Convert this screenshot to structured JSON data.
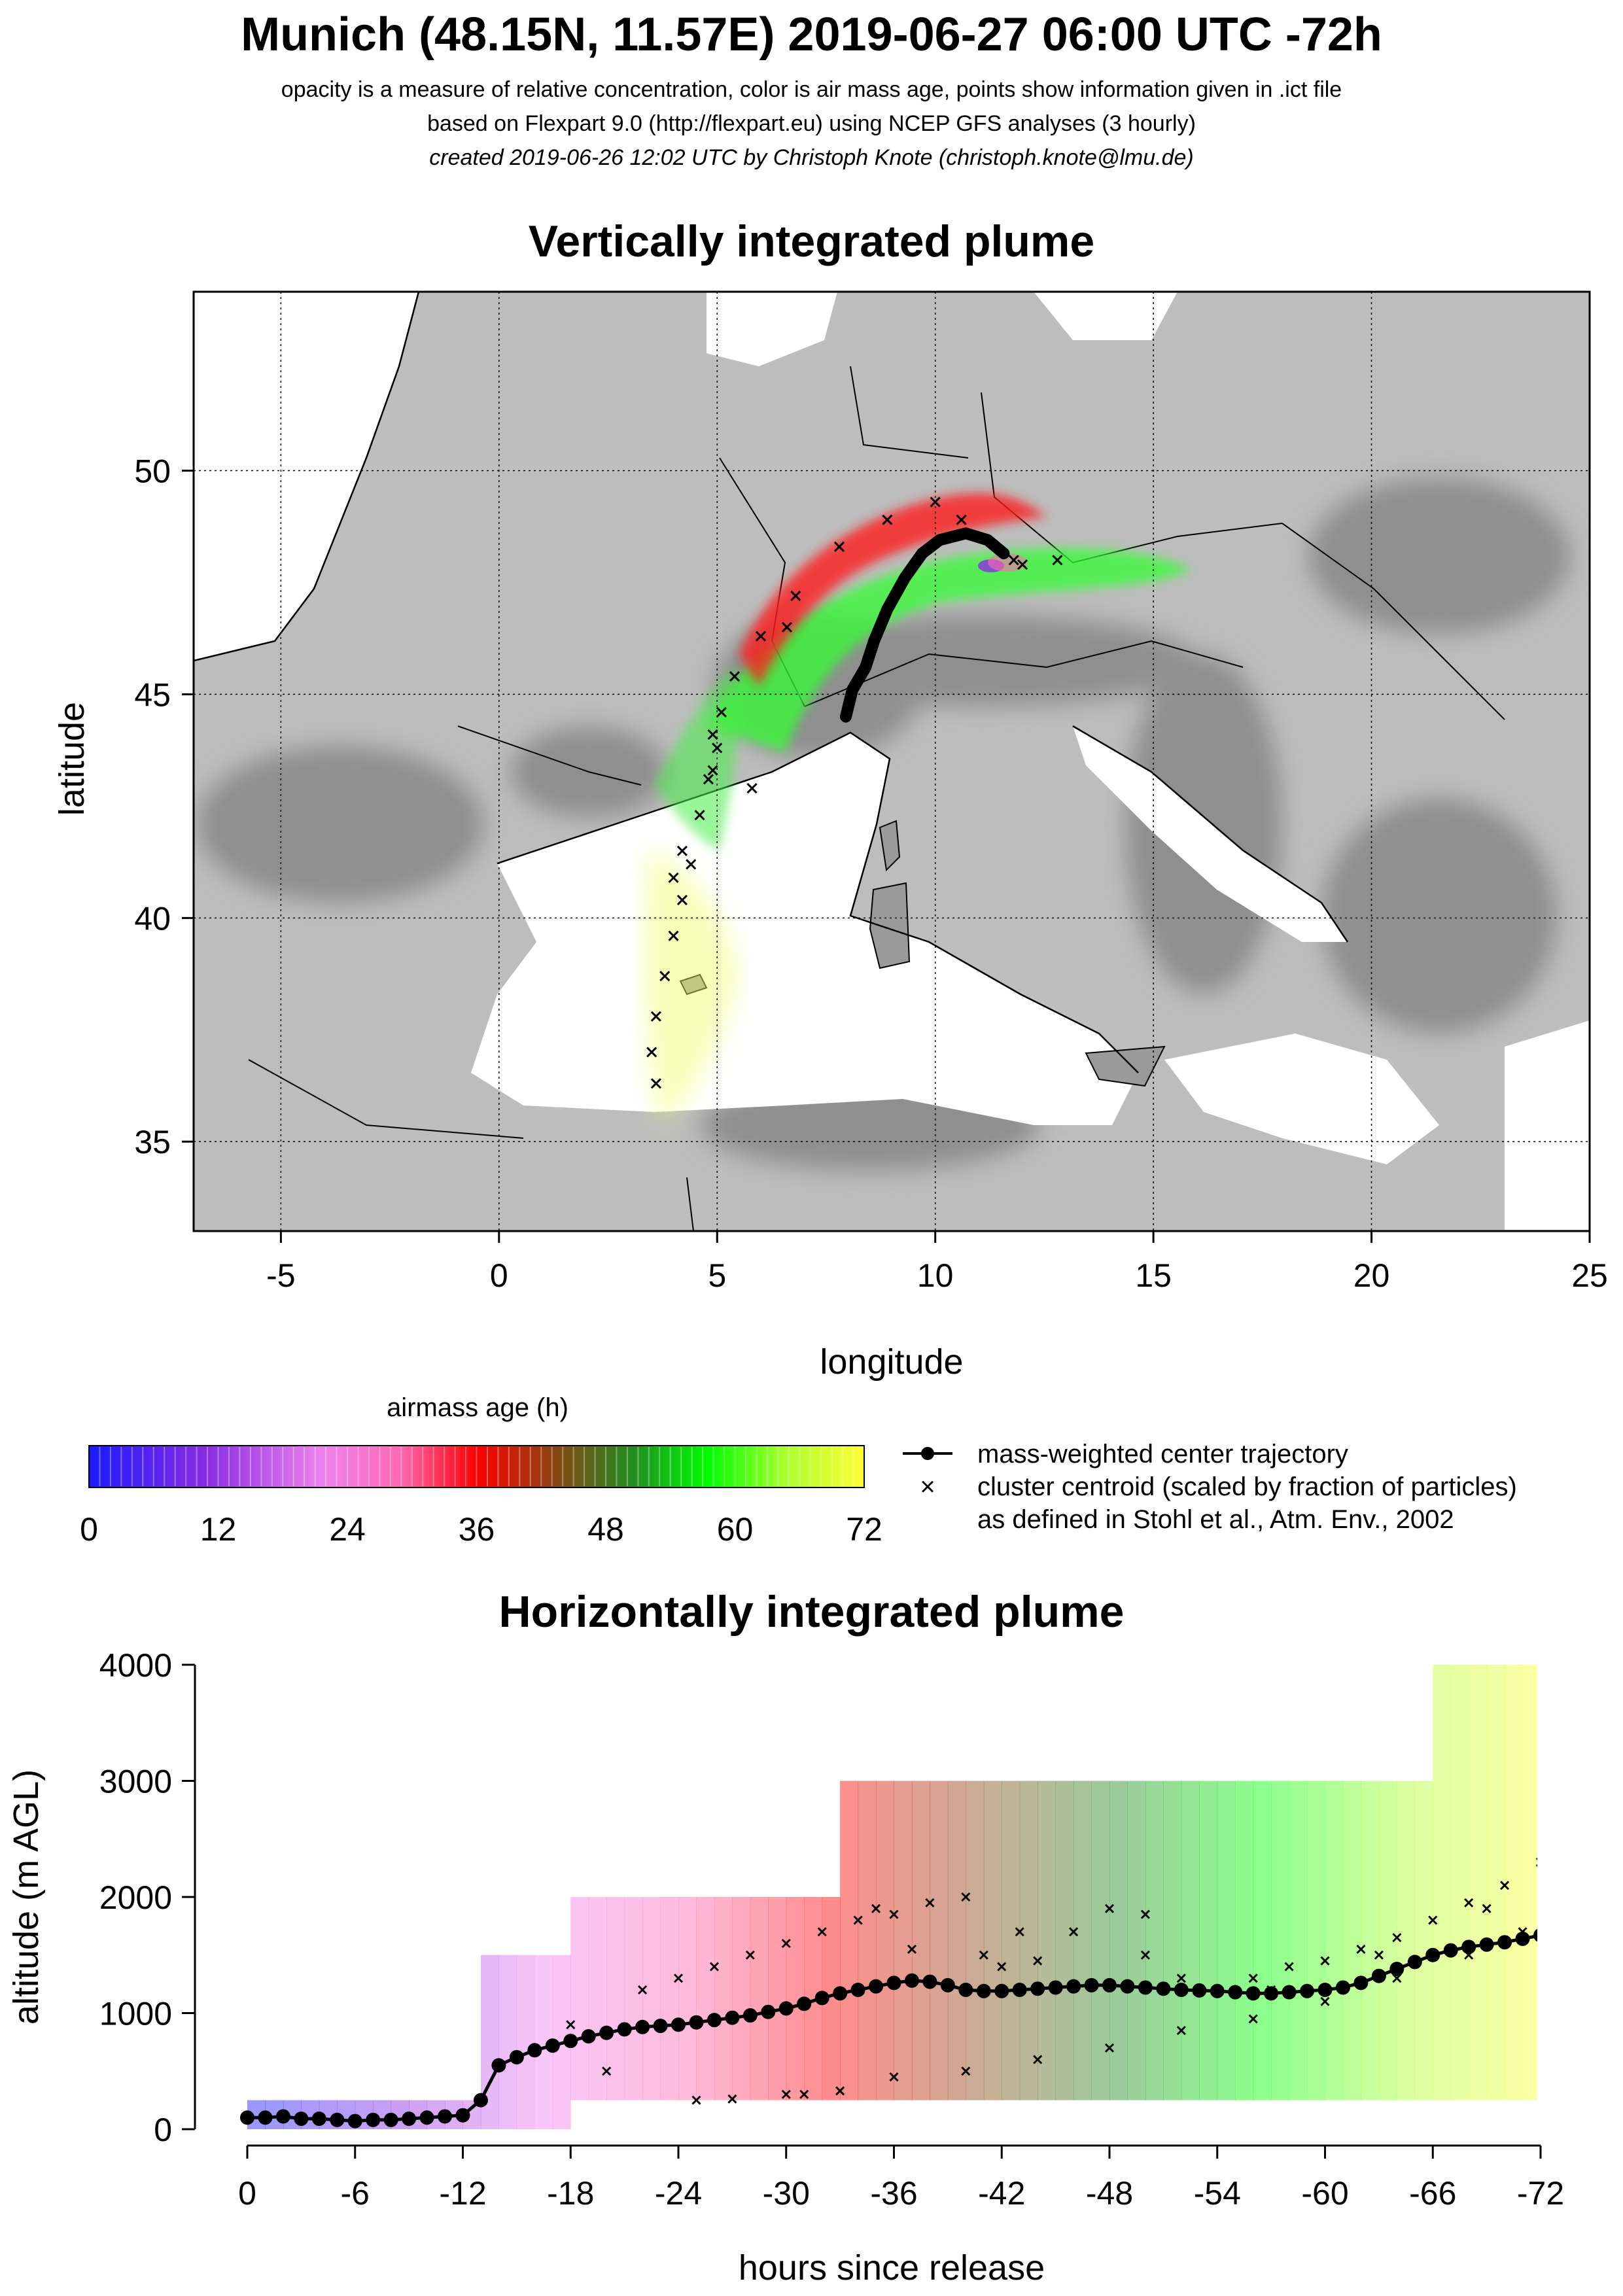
{
  "header": {
    "title": "Munich (48.15N, 11.57E) 2019-06-27 06:00 UTC -72h",
    "line1": "opacity is a measure of relative concentration, color is air mass age, points show information given in .ict file",
    "line2": "based on Flexpart 9.0 (http://flexpart.eu) using NCEP GFS analyses (3 hourly)",
    "line3": "created 2019-06-26 12:02 UTC by Christoph Knote (christoph.knote@lmu.de)"
  },
  "colors": {
    "age_ramp": [
      "#1a1aff",
      "#8a2be2",
      "#ee82ee",
      "#ff69b4",
      "#ff0000",
      "#8b4513",
      "#228b22",
      "#00ff00",
      "#adff2f",
      "#ffff33"
    ],
    "terrain_gray": "#bdbdbd",
    "water": "#ffffff",
    "marker": "#000000"
  },
  "legend": {
    "colorbar_title": "airmass age (h)",
    "colorbar_ticks": [
      "0",
      "12",
      "24",
      "36",
      "48",
      "60",
      "72"
    ],
    "line_entry": "mass-weighted center trajectory",
    "cross_entry_1": "cluster centroid (scaled by fraction of particles)",
    "cross_entry_2": "as defined in Stohl et al., Atm. Env., 2002"
  },
  "chart_data": [
    {
      "type": "scatter",
      "title": "Vertically integrated plume",
      "xlabel": "longitude",
      "ylabel": "latitude",
      "xlim": [
        -7,
        25
      ],
      "ylim": [
        33,
        54
      ],
      "x_ticks": [
        "-5",
        "0",
        "5",
        "10",
        "15",
        "20",
        "25"
      ],
      "y_ticks": [
        "35",
        "40",
        "45",
        "50"
      ],
      "grid": "dotted",
      "series": [
        {
          "name": "mass-weighted center trajectory",
          "points": [
            [
              11.57,
              48.15
            ],
            [
              11.2,
              48.45
            ],
            [
              10.7,
              48.6
            ],
            [
              10.1,
              48.45
            ],
            [
              9.7,
              48.15
            ],
            [
              9.3,
              47.6
            ],
            [
              8.9,
              46.9
            ],
            [
              8.6,
              46.2
            ],
            [
              8.4,
              45.6
            ],
            [
              8.1,
              45.1
            ],
            [
              7.95,
              44.5
            ]
          ]
        },
        {
          "name": "cluster centroids",
          "points": [
            [
              12.8,
              48.0
            ],
            [
              12.0,
              47.9
            ],
            [
              10.0,
              49.3
            ],
            [
              8.9,
              48.9
            ],
            [
              7.8,
              48.3
            ],
            [
              6.8,
              47.2
            ],
            [
              6.0,
              46.3
            ],
            [
              5.4,
              45.4
            ],
            [
              5.1,
              44.6
            ],
            [
              5.0,
              43.8
            ],
            [
              4.9,
              43.3
            ],
            [
              4.6,
              42.3
            ],
            [
              4.4,
              41.2
            ],
            [
              4.2,
              40.4
            ],
            [
              4.0,
              39.6
            ],
            [
              3.8,
              38.7
            ],
            [
              3.6,
              37.8
            ],
            [
              3.5,
              37.0
            ],
            [
              3.6,
              36.3
            ],
            [
              6.6,
              46.5
            ],
            [
              5.8,
              42.9
            ],
            [
              4.8,
              43.1
            ],
            [
              4.2,
              41.5
            ],
            [
              4.0,
              40.9
            ],
            [
              4.9,
              44.1
            ],
            [
              10.6,
              48.9
            ],
            [
              11.8,
              48.0
            ]
          ]
        }
      ],
      "plume": [
        {
          "age_h": 5,
          "lon": 11.6,
          "lat": 48.15
        },
        {
          "age_h": 12,
          "lon": 13.5,
          "lat": 48.0
        },
        {
          "age_h": 18,
          "lon": 14.8,
          "lat": 47.95
        },
        {
          "age_h": 26,
          "lon": 11.0,
          "lat": 49.0
        },
        {
          "age_h": 32,
          "lon": 9.3,
          "lat": 48.9
        },
        {
          "age_h": 36,
          "lon": 7.6,
          "lat": 48.2
        },
        {
          "age_h": 40,
          "lon": 6.6,
          "lat": 46.8
        },
        {
          "age_h": 48,
          "lon": 9.0,
          "lat": 47.2
        },
        {
          "age_h": 52,
          "lon": 6.3,
          "lat": 45.8
        },
        {
          "age_h": 58,
          "lon": 5.6,
          "lat": 44.3
        },
        {
          "age_h": 64,
          "lon": 5.2,
          "lat": 42.9
        },
        {
          "age_h": 68,
          "lon": 4.5,
          "lat": 40.5
        },
        {
          "age_h": 71,
          "lon": 4.0,
          "lat": 37.8
        }
      ]
    },
    {
      "type": "line",
      "title": "Horizontally integrated plume",
      "xlabel": "hours since release",
      "ylabel": "altitude (m AGL)",
      "xlim": [
        0,
        -72
      ],
      "ylim": [
        0,
        4000
      ],
      "x_ticks": [
        "0",
        "-6",
        "-12",
        "-18",
        "-24",
        "-30",
        "-36",
        "-42",
        "-48",
        "-54",
        "-60",
        "-66",
        "-72"
      ],
      "y_ticks": [
        "0",
        "1000",
        "2000",
        "3000",
        "4000"
      ],
      "series": [
        {
          "name": "mass-weighted center trajectory",
          "x": [
            0,
            -1,
            -2,
            -3,
            -4,
            -5,
            -6,
            -7,
            -8,
            -9,
            -10,
            -11,
            -12,
            -13,
            -14,
            -15,
            -16,
            -17,
            -18,
            -19,
            -20,
            -21,
            -22,
            -23,
            -24,
            -25,
            -26,
            -27,
            -28,
            -29,
            -30,
            -31,
            -32,
            -33,
            -34,
            -35,
            -36,
            -37,
            -38,
            -39,
            -40,
            -41,
            -42,
            -43,
            -44,
            -45,
            -46,
            -47,
            -48,
            -49,
            -50,
            -51,
            -52,
            -53,
            -54,
            -55,
            -56,
            -57,
            -58,
            -59,
            -60,
            -61,
            -62,
            -63,
            -64,
            -65,
            -66,
            -67,
            -68,
            -69,
            -70,
            -71,
            -72
          ],
          "y": [
            100,
            100,
            110,
            90,
            90,
            80,
            70,
            80,
            80,
            90,
            100,
            110,
            120,
            250,
            550,
            620,
            680,
            720,
            760,
            800,
            830,
            860,
            880,
            890,
            900,
            920,
            940,
            960,
            980,
            1010,
            1040,
            1080,
            1130,
            1170,
            1200,
            1230,
            1260,
            1280,
            1270,
            1240,
            1200,
            1190,
            1190,
            1200,
            1210,
            1220,
            1230,
            1240,
            1240,
            1230,
            1220,
            1210,
            1200,
            1195,
            1190,
            1180,
            1170,
            1170,
            1180,
            1190,
            1200,
            1220,
            1260,
            1320,
            1380,
            1440,
            1500,
            1540,
            1570,
            1590,
            1610,
            1640,
            1670
          ]
        },
        {
          "name": "cluster centroids",
          "x": [
            -18,
            -22,
            -24,
            -26,
            -28,
            -30,
            -32,
            -34,
            -35,
            -36,
            -38,
            -40,
            -41,
            -42,
            -44,
            -46,
            -48,
            -50,
            -52,
            -54,
            -56,
            -58,
            -60,
            -62,
            -64,
            -66,
            -68,
            -70,
            -72,
            -25,
            -30,
            -33,
            -36,
            -40,
            -44,
            -48,
            -52,
            -56,
            -60,
            -64,
            -68,
            -71,
            -20,
            -27,
            -31,
            -37,
            -43,
            -50,
            -57,
            -63,
            -69
          ],
          "y": [
            900,
            1200,
            1300,
            1400,
            1500,
            1600,
            1700,
            1800,
            1900,
            1850,
            1950,
            2000,
            1500,
            1400,
            1450,
            1700,
            1900,
            1500,
            1300,
            1200,
            1300,
            1400,
            1450,
            1550,
            1650,
            1800,
            1950,
            2100,
            2300,
            250,
            300,
            330,
            450,
            500,
            600,
            700,
            850,
            950,
            1100,
            1300,
            1500,
            1700,
            500,
            260,
            300,
            1550,
            1700,
            1850,
            1200,
            1500,
            1900
          ]
        }
      ],
      "plume_bands": [
        {
          "t_from": 0,
          "t_to": -13,
          "alt_from": 0,
          "alt_to": 250,
          "age_h": 6
        },
        {
          "t_from": -13,
          "t_to": -18,
          "alt_from": 0,
          "alt_to": 1500,
          "age_h": 15
        },
        {
          "t_from": -18,
          "t_to": -30,
          "alt_from": 250,
          "alt_to": 2000,
          "age_h": 24
        },
        {
          "t_from": -30,
          "t_to": -39,
          "alt_from": 250,
          "alt_to": 2000,
          "age_h": 34
        },
        {
          "t_from": -33,
          "t_to": -39,
          "alt_from": 2000,
          "alt_to": 3000,
          "age_h": 34
        },
        {
          "t_from": -39,
          "t_to": -46,
          "alt_from": 250,
          "alt_to": 3000,
          "age_h": 42
        },
        {
          "t_from": -46,
          "t_to": -58,
          "alt_from": 250,
          "alt_to": 3000,
          "age_h": 52
        },
        {
          "t_from": -58,
          "t_to": -66,
          "alt_from": 250,
          "alt_to": 3000,
          "age_h": 62
        },
        {
          "t_from": -66,
          "t_to": -72,
          "alt_from": 250,
          "alt_to": 4000,
          "age_h": 70
        }
      ]
    }
  ]
}
